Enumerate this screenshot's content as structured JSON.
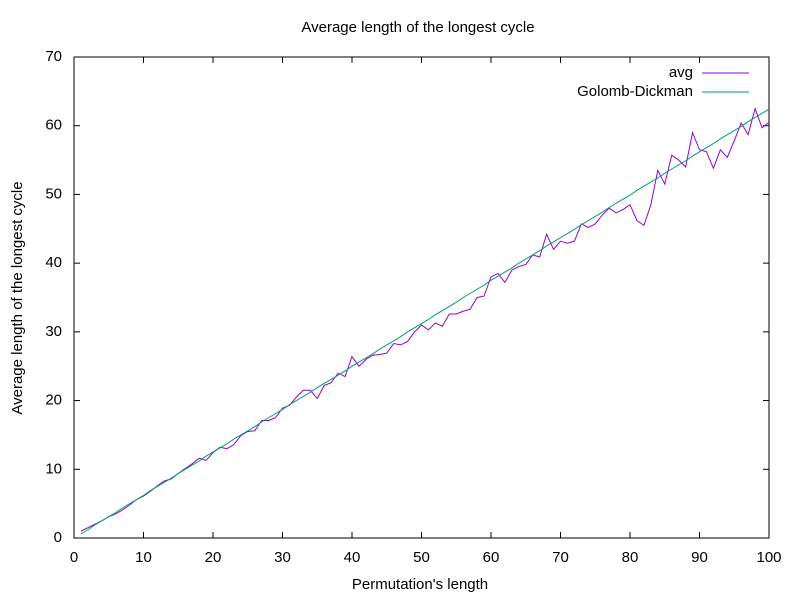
{
  "chart_data": {
    "type": "line",
    "title": "Average length of the longest cycle",
    "xlabel": "Permutation's length",
    "ylabel": "Average length of the longest cycle",
    "x": [
      1,
      2,
      3,
      4,
      5,
      6,
      7,
      8,
      9,
      10,
      11,
      12,
      13,
      14,
      15,
      16,
      17,
      18,
      19,
      20,
      21,
      22,
      23,
      24,
      25,
      26,
      27,
      28,
      29,
      30,
      31,
      32,
      33,
      34,
      35,
      36,
      37,
      38,
      39,
      40,
      41,
      42,
      43,
      44,
      45,
      46,
      47,
      48,
      49,
      50,
      51,
      52,
      53,
      54,
      55,
      56,
      57,
      58,
      59,
      60,
      61,
      62,
      63,
      64,
      65,
      66,
      67,
      68,
      69,
      70,
      71,
      72,
      73,
      74,
      75,
      76,
      77,
      78,
      79,
      80,
      81,
      82,
      83,
      84,
      85,
      86,
      87,
      88,
      89,
      90,
      91,
      92,
      93,
      94,
      95,
      96,
      97,
      98,
      99,
      100
    ],
    "series": [
      {
        "name": "avg",
        "color": "#9400d3",
        "values": [
          1,
          1.5,
          2,
          2.5,
          3.1,
          3.5,
          4.1,
          4.8,
          5.6,
          6.1,
          6.8,
          7.6,
          8.3,
          8.6,
          9.4,
          10.1,
          10.8,
          11.6,
          11.3,
          12.4,
          13.2,
          13,
          13.6,
          14.9,
          15.5,
          15.6,
          17.1,
          17.1,
          17.5,
          18.9,
          19.3,
          20.5,
          21.5,
          21.5,
          20.3,
          22.2,
          22.6,
          24,
          23.5,
          26.4,
          25,
          26,
          26.6,
          26.7,
          26.9,
          28.3,
          28.1,
          28.6,
          30,
          31,
          30.3,
          31.3,
          30.8,
          32.6,
          32.6,
          33,
          33.3,
          35,
          35.2,
          38,
          38.5,
          37.2,
          39,
          39.5,
          39.8,
          41.2,
          40.9,
          44.2,
          42,
          43.2,
          42.9,
          43.2,
          45.7,
          45.2,
          45.7,
          47,
          48,
          47.3,
          47.8,
          48.5,
          46.2,
          45.5,
          48.5,
          53.5,
          51.5,
          55.7,
          55,
          54,
          59,
          56.5,
          56.2,
          53.8,
          56.5,
          55.4,
          57.8,
          60.4,
          58.7,
          62.5,
          59.7,
          60.5
        ]
      },
      {
        "name": "Golomb-Dickman",
        "color": "#009e73",
        "values": [
          0.6,
          1.2,
          1.9,
          2.5,
          3.1,
          3.7,
          4.4,
          5,
          5.6,
          6.2,
          6.9,
          7.5,
          8.1,
          8.7,
          9.4,
          10,
          10.6,
          11.2,
          11.9,
          12.5,
          13.1,
          13.7,
          14.4,
          15,
          15.6,
          16.2,
          16.9,
          17.5,
          18.1,
          18.7,
          19.4,
          20,
          20.6,
          21.2,
          21.9,
          22.5,
          23.1,
          23.7,
          24.3,
          25,
          25.6,
          26.2,
          26.8,
          27.5,
          28.1,
          28.7,
          29.3,
          30,
          30.6,
          31.2,
          31.8,
          32.5,
          33.1,
          33.7,
          34.3,
          35,
          35.6,
          36.2,
          36.8,
          37.5,
          38.1,
          38.7,
          39.3,
          40,
          40.6,
          41.2,
          41.8,
          42.5,
          43.1,
          43.7,
          44.3,
          44.9,
          45.6,
          46.2,
          46.8,
          47.4,
          48.1,
          48.7,
          49.3,
          49.9,
          50.6,
          51.2,
          51.8,
          52.4,
          53.1,
          53.7,
          54.3,
          54.9,
          55.6,
          56.2,
          56.8,
          57.4,
          58.1,
          58.7,
          59.3,
          59.9,
          60.6,
          61.2,
          61.8,
          62.4
        ]
      }
    ],
    "xlim": [
      0,
      100
    ],
    "xticks": [
      0,
      10,
      20,
      30,
      40,
      50,
      60,
      70,
      80,
      90,
      100
    ],
    "ylim": [
      0,
      70
    ],
    "yticks": [
      0,
      10,
      20,
      30,
      40,
      50,
      60,
      70
    ],
    "legend": "top right"
  }
}
